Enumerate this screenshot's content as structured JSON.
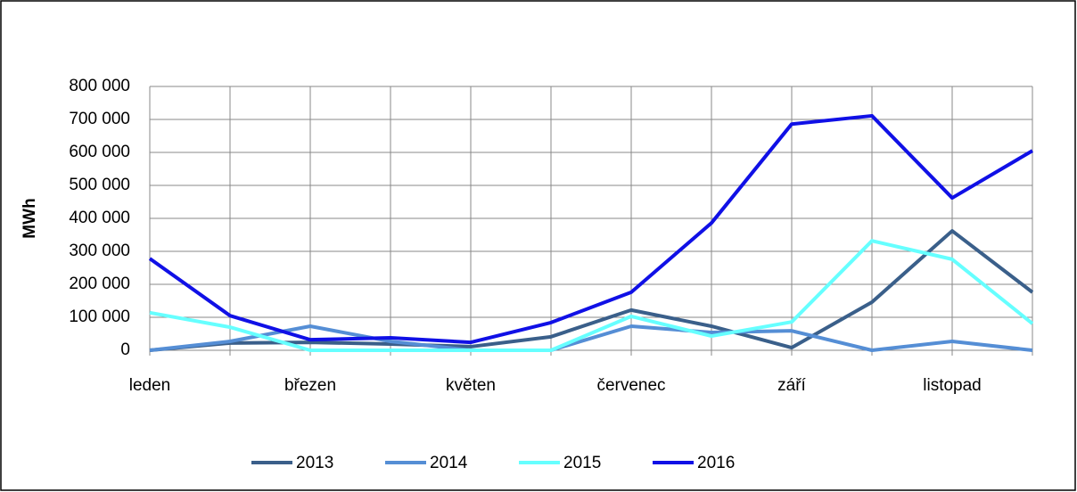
{
  "chart_data": {
    "type": "line",
    "y_label": "MWh",
    "categories": [
      "leden",
      null,
      "březen",
      null,
      "květen",
      null,
      "červenec",
      null,
      "září",
      null,
      "listopad",
      null
    ],
    "series": [
      {
        "name": "2013",
        "color": "#3a5f8a",
        "values": [
          0,
          22000,
          24000,
          19000,
          11000,
          41000,
          122000,
          73000,
          8000,
          146000,
          362000,
          176000
        ]
      },
      {
        "name": "2014",
        "color": "#558ed5",
        "values": [
          0,
          27000,
          73000,
          27000,
          0,
          0,
          73000,
          54000,
          59000,
          0,
          27000,
          0
        ]
      },
      {
        "name": "2015",
        "color": "#66ffff",
        "values": [
          114000,
          70000,
          0,
          0,
          0,
          0,
          103000,
          43000,
          86000,
          332000,
          276000,
          81000
        ]
      },
      {
        "name": "2016",
        "color": "#1010e6",
        "values": [
          278000,
          105000,
          32000,
          38000,
          24000,
          84000,
          176000,
          386000,
          686000,
          711000,
          462000,
          605000
        ]
      }
    ],
    "ylim": [
      0,
      800000
    ],
    "yticks": [
      0,
      {
        "value": 100000,
        "label": "100 000"
      },
      {
        "value": 200000,
        "label": "200 000"
      },
      {
        "value": 300000,
        "label": "300 000"
      },
      {
        "value": 400000,
        "label": "400 000"
      },
      {
        "value": 500000,
        "label": "500 000"
      },
      {
        "value": 600000,
        "label": "600 000"
      },
      {
        "value": 700000,
        "label": "700 000"
      },
      {
        "value": 800000,
        "label": "800 000"
      }
    ],
    "grid": true,
    "legend": "bottom"
  }
}
